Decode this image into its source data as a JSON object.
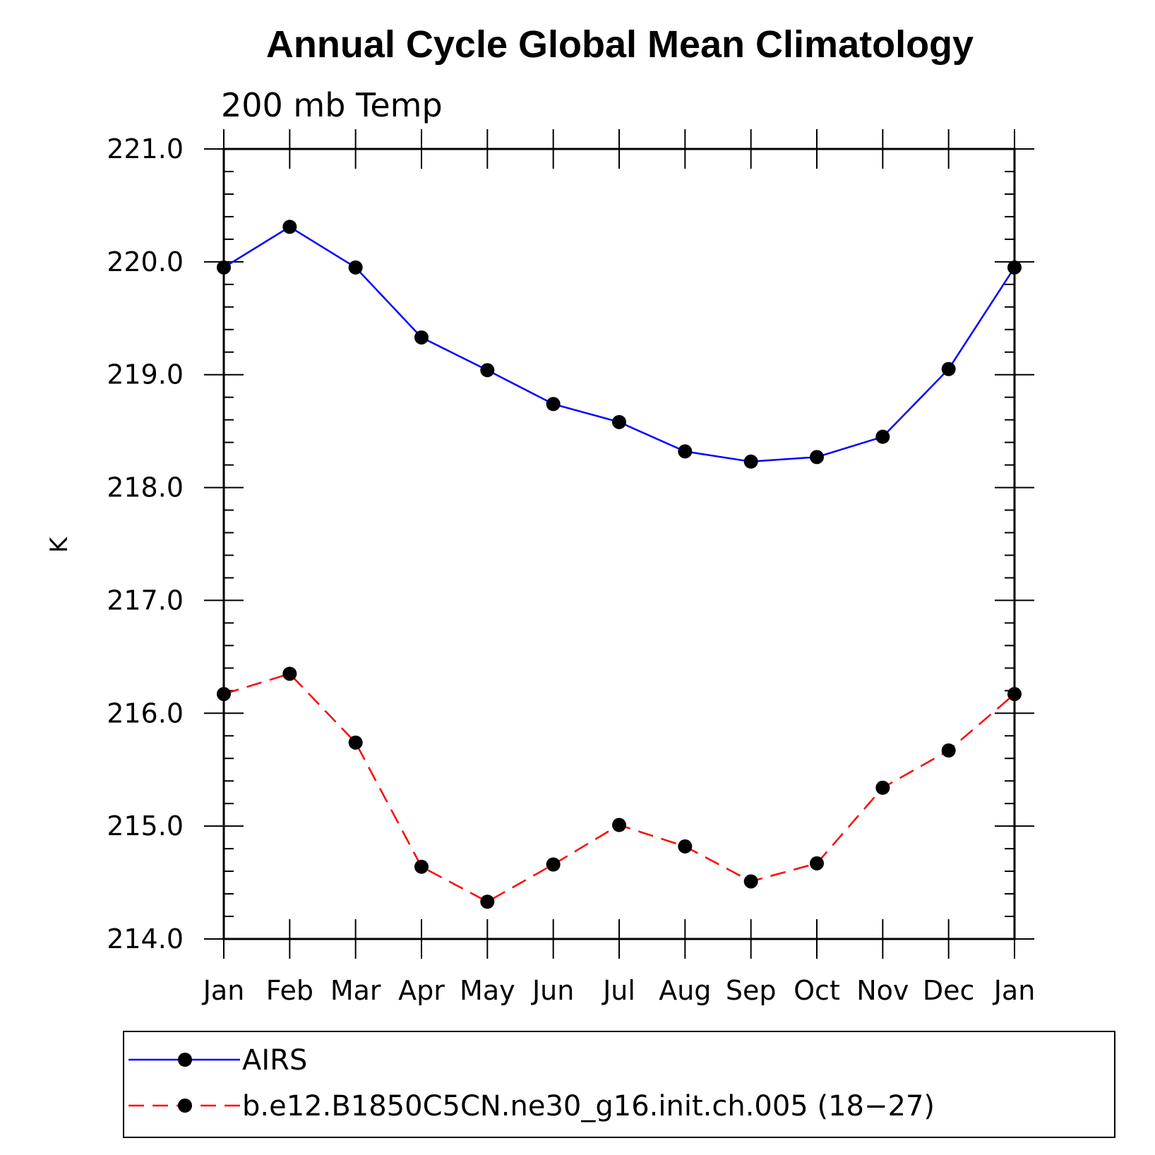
{
  "chart_data": {
    "type": "line",
    "title": "Annual Cycle Global Mean Climatology",
    "subtitle": "200 mb Temp",
    "xlabel": "",
    "ylabel": "K",
    "categories": [
      "Jan",
      "Feb",
      "Mar",
      "Apr",
      "May",
      "Jun",
      "Jul",
      "Aug",
      "Sep",
      "Oct",
      "Nov",
      "Dec",
      "Jan"
    ],
    "ylim": [
      214.0,
      221.0
    ],
    "yticks": [
      "214.0",
      "215.0",
      "216.0",
      "217.0",
      "218.0",
      "219.0",
      "220.0",
      "221.0"
    ],
    "grid": false,
    "legend_position": "bottom",
    "series": [
      {
        "name": "AIRS",
        "color": "#0000ff",
        "line_style": "solid",
        "marker": "filled-circle",
        "values": [
          219.95,
          220.31,
          219.95,
          219.33,
          219.04,
          218.74,
          218.58,
          218.32,
          218.23,
          218.27,
          218.45,
          219.05,
          219.95
        ]
      },
      {
        "name": "b.e12.B1850C5CN.ne30_g16.init.ch.005 (18−27)",
        "color": "#ff0000",
        "line_style": "dashed",
        "marker": "filled-circle",
        "values": [
          216.17,
          216.35,
          215.74,
          214.64,
          214.33,
          214.66,
          215.01,
          214.82,
          214.51,
          214.67,
          215.34,
          215.67,
          216.17
        ]
      }
    ]
  }
}
